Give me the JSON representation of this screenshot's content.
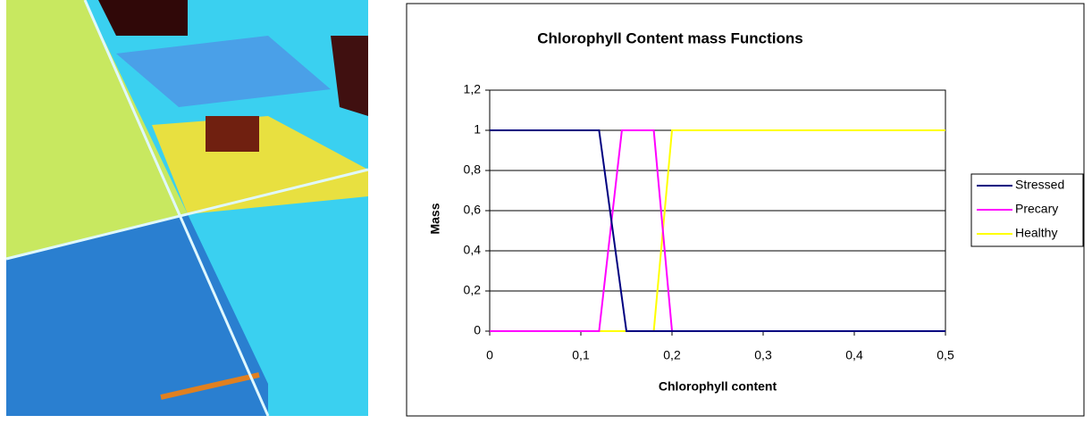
{
  "chart_data": {
    "type": "line",
    "title": "Chlorophyll Content mass Functions",
    "x_label": "Chlorophyll content",
    "y_label": "Mass",
    "xlim": [
      0,
      0.5
    ],
    "ylim": [
      0,
      1.2
    ],
    "xticks": [
      0,
      {
        "value": 0.1,
        "label": "0,1"
      },
      {
        "value": 0.2,
        "label": "0,2"
      },
      {
        "value": 0.3,
        "label": "0,3"
      },
      {
        "value": 0.4,
        "label": "0,4"
      },
      {
        "value": 0.5,
        "label": "0,5"
      }
    ],
    "yticks": [
      0,
      {
        "value": 0.2,
        "label": "0,2"
      },
      {
        "value": 0.4,
        "label": "0,4"
      },
      {
        "value": 0.6,
        "label": "0,6"
      },
      {
        "value": 0.8,
        "label": "0,8"
      },
      1,
      {
        "value": 1.2,
        "label": "1,2"
      }
    ],
    "grid": true,
    "legend": "right",
    "series": [
      {
        "name": "Stressed",
        "color": "#000080",
        "x": [
          0,
          0.12,
          0.15,
          0.5
        ],
        "values": [
          1,
          1,
          0,
          0
        ]
      },
      {
        "name": "Precary",
        "color": "#ff00ff",
        "x": [
          0,
          0.12,
          0.145,
          0.18,
          0.2,
          0.5
        ],
        "values": [
          0,
          0,
          1,
          1,
          0,
          0
        ]
      },
      {
        "name": "Healthy",
        "color": "#ffff00",
        "x": [
          0,
          0.18,
          0.2,
          0.5
        ],
        "values": [
          0,
          0,
          1,
          1
        ]
      }
    ]
  }
}
